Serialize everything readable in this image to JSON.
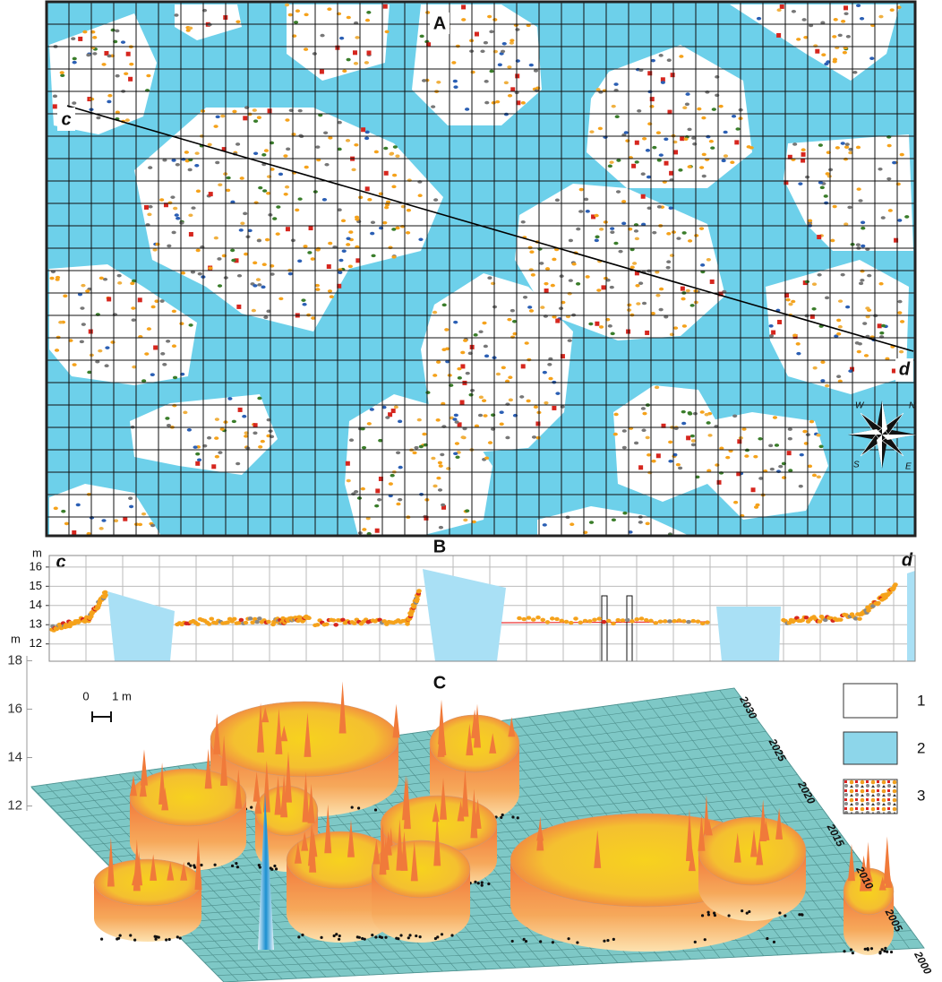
{
  "panel_a": {
    "label": "A",
    "section_start": "c",
    "section_end": "d",
    "compass": [
      "W",
      "N",
      "S",
      "E"
    ]
  },
  "panel_b": {
    "label": "B",
    "unit": "m",
    "start": "c",
    "end": "d",
    "ylim": [
      11.1,
      16.6
    ],
    "yticks": [
      12,
      13,
      14,
      15,
      16
    ]
  },
  "panel_c": {
    "label": "C",
    "unit": "m",
    "zlim": [
      11.8,
      18.2
    ],
    "zticks": [
      12,
      14,
      16,
      18
    ],
    "scale_bar": [
      "0",
      "1 m"
    ],
    "year_labels": [
      "2000",
      "2005",
      "2010",
      "2015",
      "2020",
      "2025",
      "2030"
    ]
  },
  "legend": [
    {
      "label": "1"
    },
    {
      "label": "2"
    },
    {
      "label": "3"
    }
  ]
}
